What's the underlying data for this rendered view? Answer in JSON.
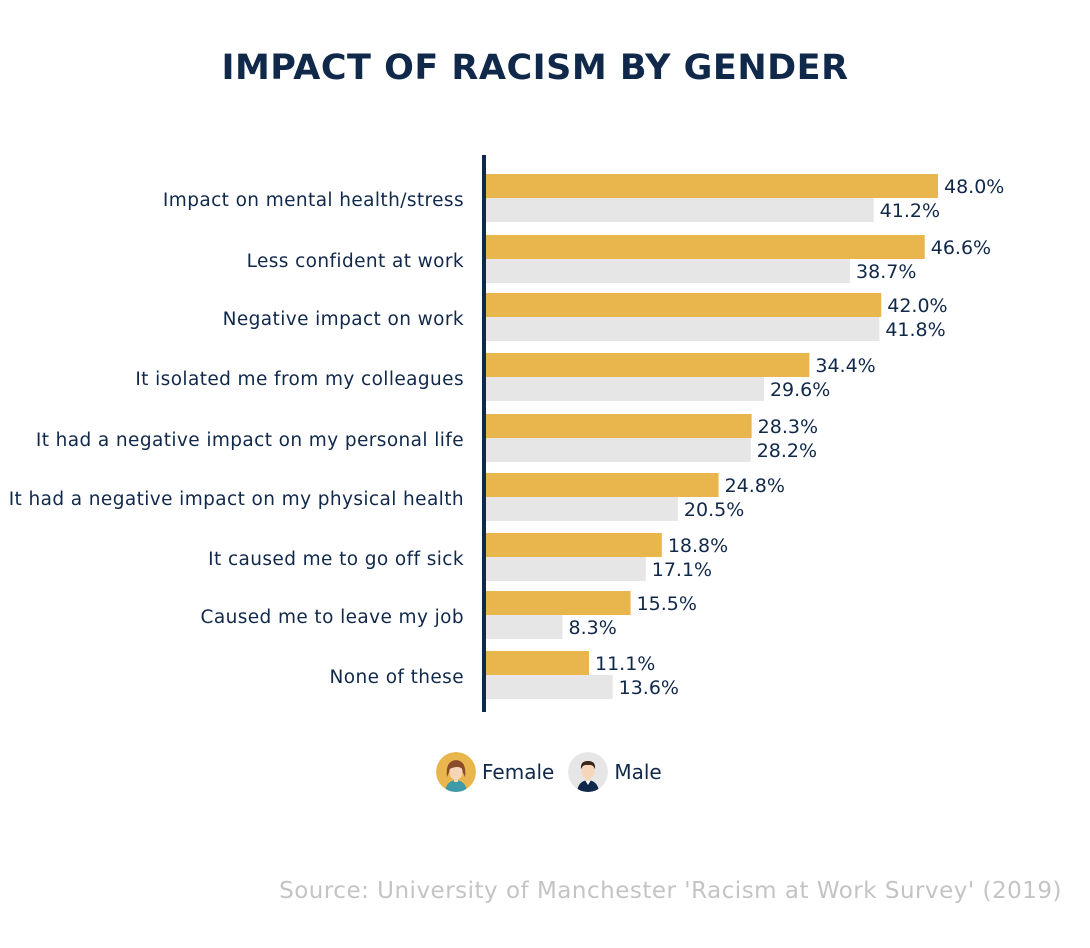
{
  "title": "IMPACT OF RACISM BY GENDER",
  "source": "Source: University of Manchester 'Racism at Work Survey' (2019)",
  "legend": {
    "female_label": "Female",
    "male_label": "Male",
    "female_icon": "female-avatar-icon",
    "male_icon": "male-avatar-icon"
  },
  "colors": {
    "female": "#e9b64e",
    "male": "#e6e6e6",
    "axis": "#10284a",
    "text": "#10284a"
  },
  "chart_data": {
    "type": "bar",
    "orientation": "horizontal",
    "title": "IMPACT OF RACISM BY GENDER",
    "categories": [
      "Impact on mental health/stress",
      "Less confident at work",
      "Negative impact on work",
      "It isolated me from my colleagues",
      "It had a negative impact on my personal life",
      "It had a negative impact on my physical health",
      "It caused me to go off sick",
      "Caused me to leave my job",
      "None of these"
    ],
    "series": [
      {
        "name": "Female",
        "values": [
          48.0,
          46.6,
          42.0,
          34.4,
          28.3,
          24.8,
          18.8,
          15.5,
          11.1
        ],
        "labels": [
          "48.0%",
          "46.6%",
          "42.0%",
          "34.4%",
          "28.3%",
          "24.8%",
          "18.8%",
          "15.5%",
          "11.1%"
        ]
      },
      {
        "name": "Male",
        "values": [
          41.2,
          38.7,
          41.8,
          29.6,
          28.2,
          20.5,
          17.1,
          8.3,
          13.6
        ],
        "labels": [
          "41.2%",
          "38.7%",
          "41.8%",
          "29.6%",
          "28.2%",
          "20.5%",
          "17.1%",
          "8.3%",
          "13.6%"
        ]
      }
    ],
    "xlim": [
      0,
      48
    ],
    "grid": false,
    "legend_position": "bottom-center"
  }
}
